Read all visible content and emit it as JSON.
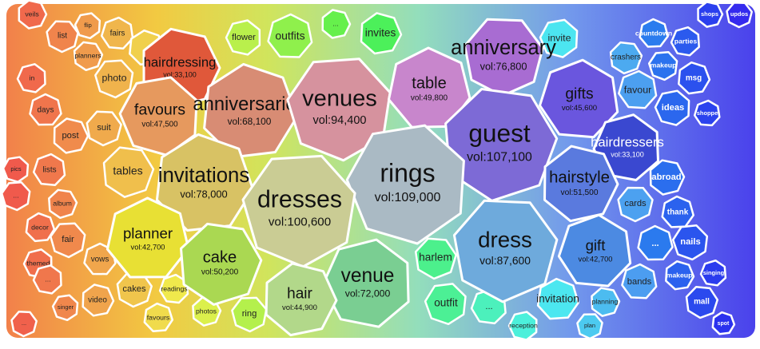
{
  "chart_data": {
    "type": "voronoi",
    "cells": [
      {
        "name": "hairdressing",
        "value": 33100,
        "value_label": "vol:33,100",
        "color": "#e0583a"
      },
      {
        "name": "favours",
        "value": 47500,
        "value_label": "vol:47,500",
        "color": "#e6995e"
      },
      {
        "name": "anniversaries",
        "value": 68100,
        "value_label": "vol:68,100",
        "color": "#d88c74"
      },
      {
        "name": "venues",
        "value": 94400,
        "value_label": "vol:94,400",
        "color": "#d6929e"
      },
      {
        "name": "table",
        "value": 49800,
        "value_label": "vol:49,800",
        "color": "#c886cc"
      },
      {
        "name": "anniversary",
        "value": 76800,
        "value_label": "vol:76,800",
        "color": "#a86cd2"
      },
      {
        "name": "gifts",
        "value": 45600,
        "value_label": "vol:45,600",
        "color": "#6a56de"
      },
      {
        "name": "guest",
        "value": 107100,
        "value_label": "vol:107,100",
        "color": "#7d6ad6"
      },
      {
        "name": "hairdressers",
        "value": 33100,
        "value_label": "vol:33,100",
        "color": "#3a48d0"
      },
      {
        "name": "hairstyle",
        "value": 51500,
        "value_label": "vol:51,500",
        "color": "#5a7ade"
      },
      {
        "name": "rings",
        "value": 109000,
        "value_label": "vol:109,000",
        "color": "#aabac4"
      },
      {
        "name": "invitations",
        "value": 78000,
        "value_label": "vol:78,000",
        "color": "#d8c264"
      },
      {
        "name": "dresses",
        "value": 100600,
        "value_label": "vol:100,600",
        "color": "#cacc94"
      },
      {
        "name": "planner",
        "value": 42700,
        "value_label": "vol:42,700",
        "color": "#e8e034"
      },
      {
        "name": "dress",
        "value": 87600,
        "value_label": "vol:87,600",
        "color": "#6eaadc"
      },
      {
        "name": "gift",
        "value": 42700,
        "value_label": "vol:42,700",
        "color": "#4c8ae2"
      },
      {
        "name": "cake",
        "value": 50200,
        "value_label": "vol:50,200",
        "color": "#aad852"
      },
      {
        "name": "venue",
        "value": 72000,
        "value_label": "vol:72,000",
        "color": "#7ace92"
      },
      {
        "name": "hair",
        "value": 44900,
        "value_label": "vol:44,900",
        "color": "#b2d88a"
      }
    ],
    "terms": [
      "veils",
      "list",
      "flip",
      "fairs",
      "...",
      "planners",
      "photo",
      "in",
      "days",
      "post",
      "suit",
      "pics",
      "lists",
      "decor",
      "album",
      "fair",
      "themed",
      "vows",
      "video",
      "cakes",
      "singer",
      "readings",
      "favours",
      "photos",
      "ring",
      "flower",
      "outfits",
      "invites",
      "harlem",
      "outfit",
      "...",
      "invitation",
      "planning",
      "plan",
      "reception",
      "bands",
      "makeup",
      "mall",
      "nails",
      "singing",
      "thank",
      "abroad",
      "cards",
      "ideas",
      "favour",
      "msg",
      "crashers",
      "makeup",
      "parties",
      "countdown",
      "shops",
      "updos",
      "invite",
      "shoppe",
      "spot",
      "tables",
      "...",
      "...",
      "...",
      "...",
      "..."
    ]
  }
}
